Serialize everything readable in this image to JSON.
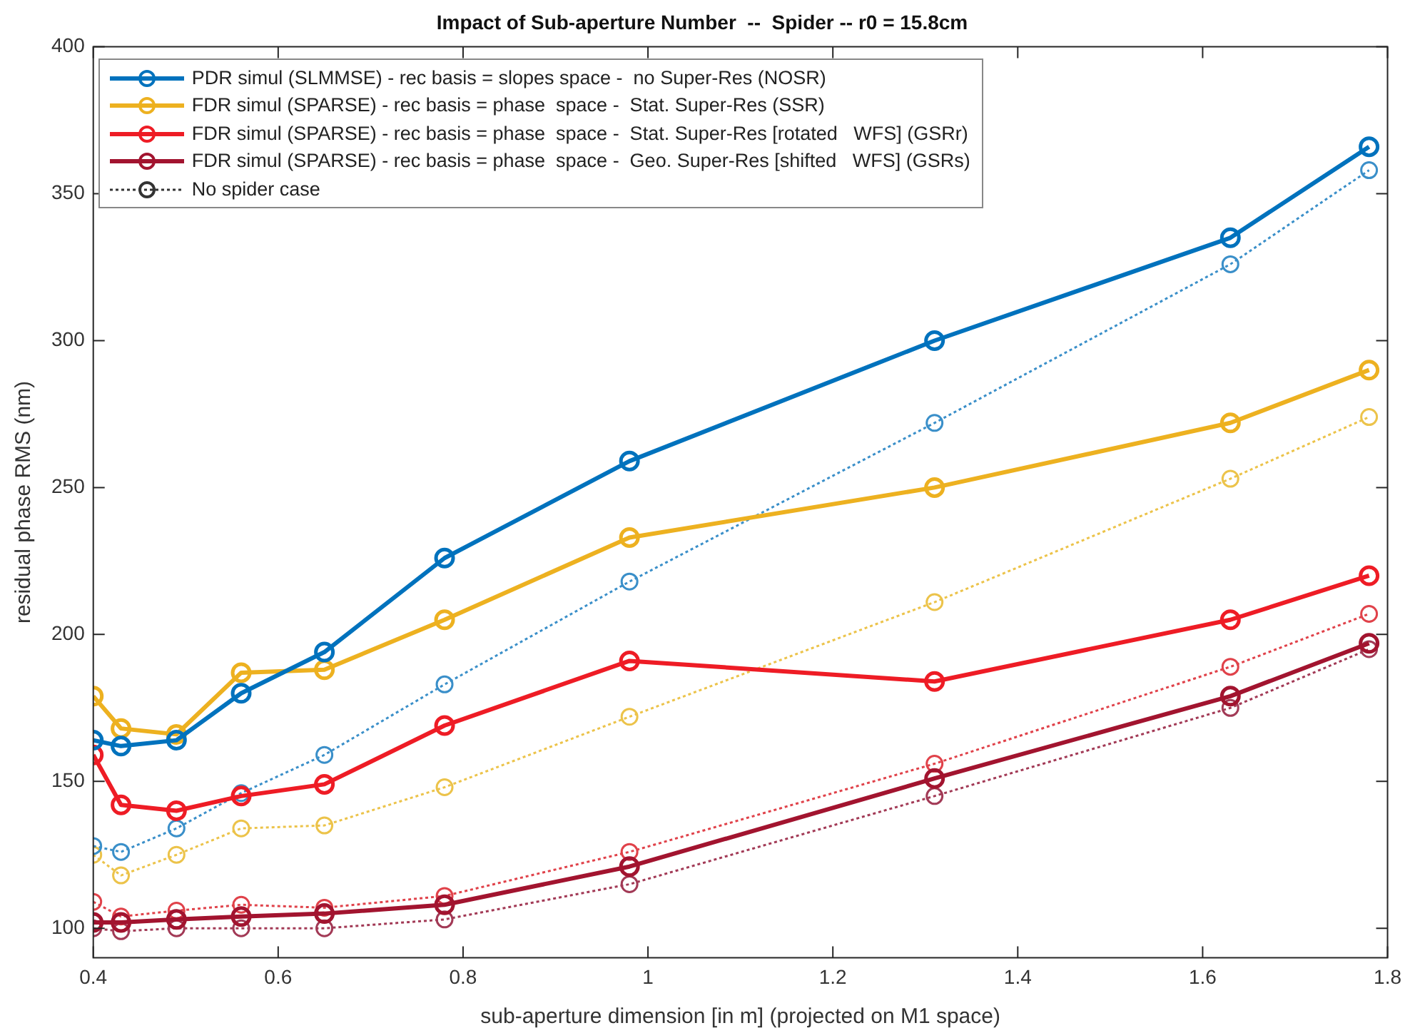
{
  "chart_data": {
    "type": "line",
    "title": "Impact of Sub-aperture Number  --  Spider -- r0 = 15.8cm",
    "xlabel": "sub-aperture dimension [in m] (projected on M1 space)",
    "ylabel": "residual phase RMS (nm)",
    "x": [
      0.4,
      0.43,
      0.49,
      0.56,
      0.65,
      0.78,
      0.98,
      1.31,
      1.63,
      1.78
    ],
    "xlim": [
      0.4,
      1.8
    ],
    "xticks": [
      0.4,
      0.6,
      0.8,
      1,
      1.2,
      1.4,
      1.6,
      1.8
    ],
    "ylim": [
      90,
      400
    ],
    "yticks": [
      100,
      150,
      200,
      250,
      300,
      350,
      400
    ],
    "grid": false,
    "legend": "top left",
    "marker": "circle",
    "series": [
      {
        "name": "PDR simul (SLMMSE) - rec basis = slopes space -  no Super-Res (NOSR)",
        "color": "#0072bd",
        "line_style": "solid",
        "values": [
          164,
          162,
          164,
          180,
          194,
          226,
          259,
          300,
          335,
          366
        ]
      },
      {
        "name": "FDR simul (SPARSE) - rec basis = phase  space -  Stat. Super-Res (SSR)",
        "color": "#edb120",
        "line_style": "solid",
        "values": [
          179,
          168,
          166,
          187,
          188,
          205,
          233,
          250,
          272,
          290
        ]
      },
      {
        "name": "FDR simul (SPARSE) - rec basis = phase  space -  Stat. Super-Res [rotated   WFS] (GSRr)",
        "color": "#ee1c25",
        "line_style": "solid",
        "values": [
          159,
          142,
          140,
          145,
          149,
          169,
          191,
          184,
          205,
          220
        ]
      },
      {
        "name": "FDR simul (SPARSE) - rec basis = phase  space -  Geo. Super-Res [shifted   WFS] (GSRs)",
        "color": "#a2142f",
        "line_style": "solid",
        "values": [
          102,
          102,
          103,
          104,
          105,
          108,
          121,
          151,
          179,
          197
        ]
      },
      {
        "name": "No spider case",
        "color": "#333333",
        "line_style": "dotted",
        "values": [
          null,
          null,
          null,
          null,
          null,
          null,
          null,
          null,
          null,
          null
        ]
      },
      {
        "color": "#3a8fc9",
        "line_style": "dotted",
        "values": [
          128,
          126,
          134,
          146,
          159,
          183,
          218,
          272,
          326,
          358
        ]
      },
      {
        "color": "#ecc34a",
        "line_style": "dotted",
        "values": [
          125,
          118,
          125,
          134,
          135,
          148,
          172,
          211,
          253,
          274
        ]
      },
      {
        "color": "#e0424a",
        "line_style": "dotted",
        "values": [
          109,
          104,
          106,
          108,
          107,
          111,
          126,
          156,
          189,
          207
        ]
      },
      {
        "color": "#a23a56",
        "line_style": "dotted",
        "values": [
          100,
          99,
          100,
          100,
          100,
          103,
          115,
          145,
          175,
          195
        ]
      }
    ]
  }
}
